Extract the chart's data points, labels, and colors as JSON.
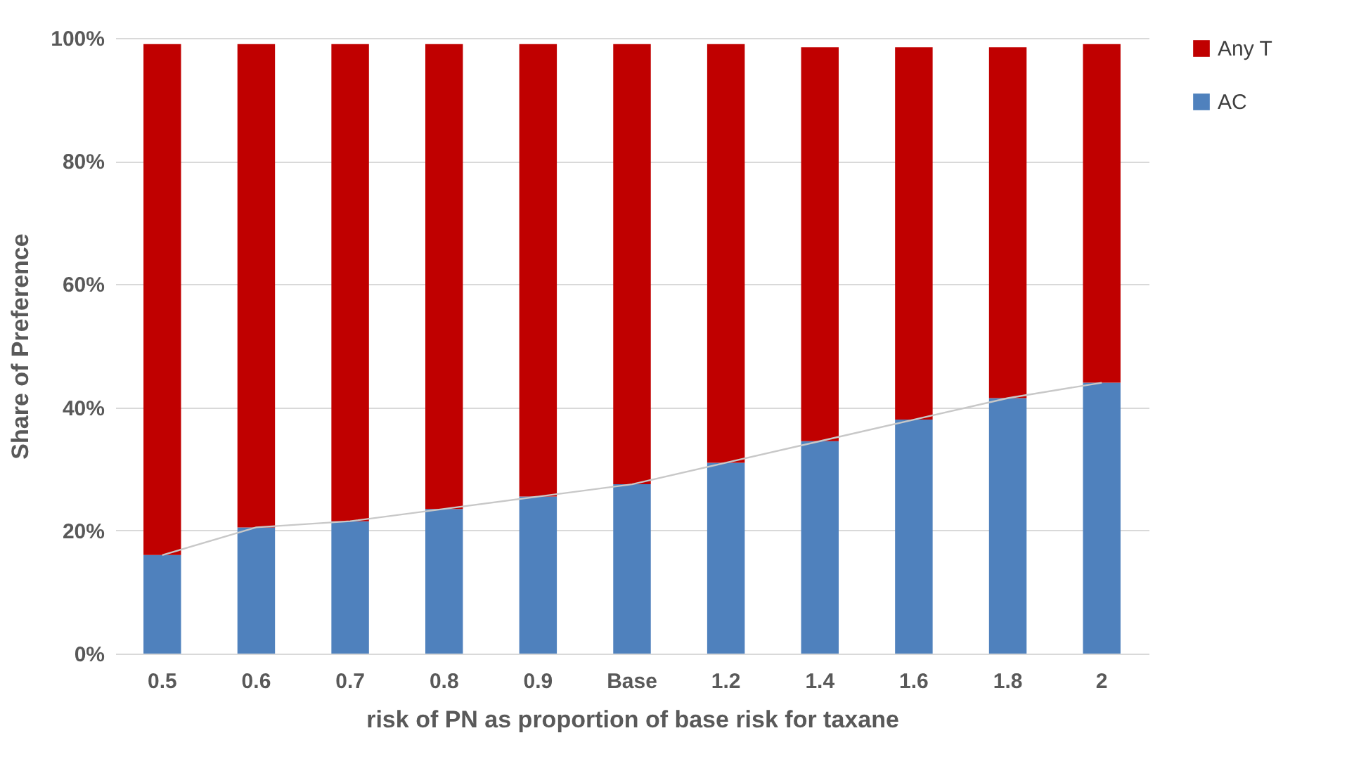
{
  "chart_data": {
    "type": "bar",
    "stacked": true,
    "xlabel": "risk of PN as proportion of base risk for taxane",
    "ylabel": "Share of Preference",
    "categories": [
      "0.5",
      "0.6",
      "0.7",
      "0.8",
      "0.9",
      "Base",
      "1.2",
      "1.4",
      "1.6",
      "1.8",
      "2"
    ],
    "series": [
      {
        "name": "AC",
        "color": "#4f81bd",
        "values": [
          16,
          20.5,
          21.5,
          23.5,
          25.5,
          27.5,
          31,
          34.5,
          38,
          41.5,
          44
        ]
      },
      {
        "name": "Any T",
        "color": "#c00000",
        "values": [
          83,
          78.5,
          77.5,
          75.5,
          73.5,
          71.5,
          68,
          64,
          60.5,
          57,
          55
        ]
      },
      {
        "type": "line",
        "color": "#c8c8c8",
        "values": [
          16,
          20.5,
          21.5,
          23.5,
          25.5,
          27.5,
          31,
          34.5,
          38,
          41.5,
          44
        ]
      }
    ],
    "ylim": [
      0,
      100
    ],
    "yticks": [
      {
        "value": 0,
        "label": "0%"
      },
      {
        "value": 20,
        "label": "20%"
      },
      {
        "value": 40,
        "label": "40%"
      },
      {
        "value": 60,
        "label": "60%"
      },
      {
        "value": 80,
        "label": "80%"
      },
      {
        "value": 100,
        "label": "100%"
      }
    ],
    "grid": "y",
    "legend": "right"
  }
}
